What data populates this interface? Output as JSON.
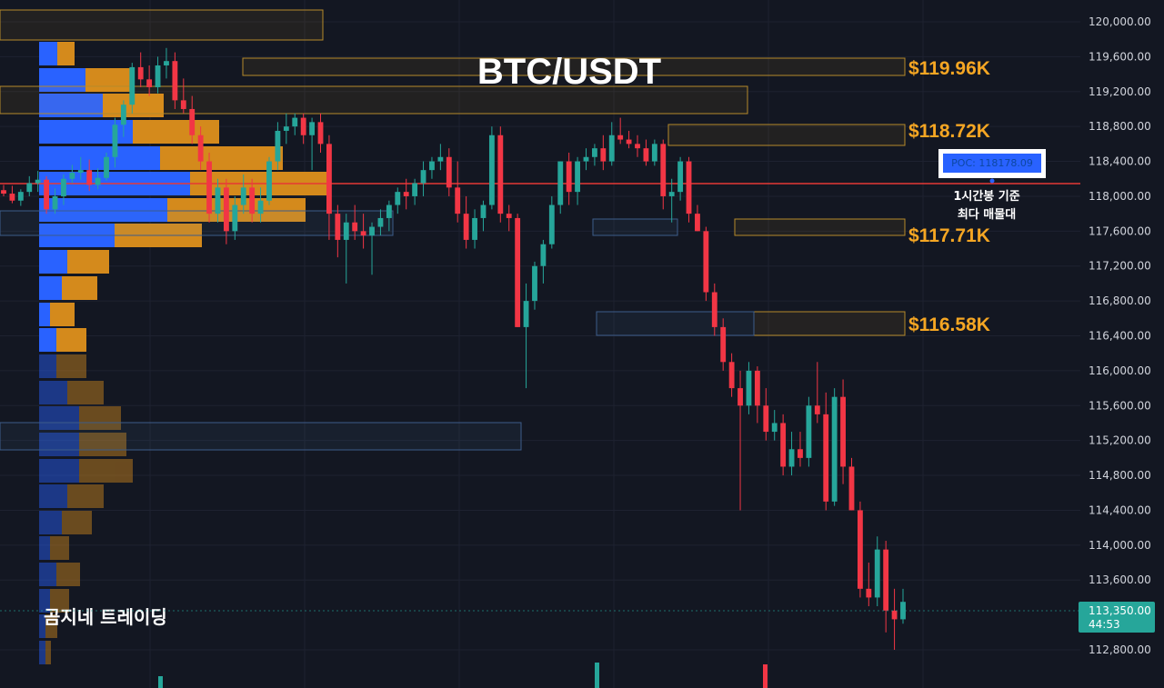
{
  "chart_data": {
    "type": "candlestick",
    "title": "BTC/USDT",
    "brand": "곰지네 트레이딩",
    "y_axis": {
      "min": 112600,
      "max": 120300,
      "ticks": [
        "120,000.00",
        "119,600.00",
        "119,200.00",
        "118,800.00",
        "118,400.00",
        "118,000.00",
        "117,600.00",
        "117,200.00",
        "116,800.00",
        "116,400.00",
        "116,000.00",
        "115,600.00",
        "115,200.00",
        "114,800.00",
        "114,400.00",
        "114,000.00",
        "113,600.00",
        "112,800.00"
      ],
      "tick_values": [
        120000,
        119600,
        119200,
        118800,
        118400,
        118000,
        117600,
        117200,
        116800,
        116400,
        116000,
        115600,
        115200,
        114800,
        114400,
        114000,
        113600,
        112800
      ]
    },
    "level_labels": [
      {
        "text": "$119.96K",
        "price": 119960
      },
      {
        "text": "$118.72K",
        "price": 118720
      },
      {
        "text": "$117.71K",
        "price": 117710
      },
      {
        "text": "$116.58K",
        "price": 116580
      }
    ],
    "poc": {
      "label": "POC: 118178.09",
      "price": 118178.09,
      "note_line1": "1시간봉 기준",
      "note_line2": "최다 매물대"
    },
    "last_price": {
      "price": 113350,
      "label": "113,350.00",
      "countdown": "44:53"
    },
    "colors": {
      "up": "#26a69a",
      "down": "#f23645",
      "poc_line": "#e53935",
      "level_box": "#f5a623",
      "blue_box": "#5b86c2",
      "profile_blue": "#2962ff",
      "profile_orange": "#f5a623",
      "background": "#131722"
    },
    "ohlc": [
      [
        118070,
        118130,
        118000,
        118030
      ],
      [
        118030,
        118120,
        117920,
        117950
      ],
      [
        117950,
        118080,
        117890,
        118050
      ],
      [
        118050,
        118230,
        118000,
        118150
      ],
      [
        118150,
        118290,
        118050,
        118190
      ],
      [
        118190,
        118230,
        117800,
        117850
      ],
      [
        117850,
        118090,
        117800,
        118000
      ],
      [
        118000,
        118250,
        117900,
        118200
      ],
      [
        118200,
        118360,
        118150,
        118270
      ],
      [
        118270,
        118450,
        118190,
        118300
      ],
      [
        118300,
        118420,
        118060,
        118130
      ],
      [
        118130,
        118320,
        118080,
        118210
      ],
      [
        118210,
        118500,
        118180,
        118450
      ],
      [
        118450,
        118900,
        118330,
        118820
      ],
      [
        118820,
        119100,
        118680,
        119050
      ],
      [
        119050,
        119530,
        118950,
        119480
      ],
      [
        119480,
        119650,
        119250,
        119340
      ],
      [
        119340,
        119500,
        119150,
        119250
      ],
      [
        119250,
        119600,
        119180,
        119500
      ],
      [
        119500,
        119700,
        119350,
        119550
      ],
      [
        119550,
        119650,
        119000,
        119100
      ],
      [
        119100,
        119350,
        118950,
        119000
      ],
      [
        119000,
        119150,
        118600,
        118700
      ],
      [
        118700,
        118800,
        118300,
        118400
      ],
      [
        118400,
        118500,
        117700,
        117800
      ],
      [
        117800,
        118200,
        117700,
        118100
      ],
      [
        118100,
        118200,
        117450,
        117600
      ],
      [
        117600,
        118000,
        117500,
        117900
      ],
      [
        117900,
        118250,
        117800,
        118100
      ],
      [
        118100,
        118200,
        117700,
        117800
      ],
      [
        117800,
        118100,
        117700,
        117950
      ],
      [
        117950,
        118450,
        117900,
        118400
      ],
      [
        118400,
        118850,
        118300,
        118750
      ],
      [
        118750,
        118950,
        118600,
        118800
      ],
      [
        118800,
        118950,
        118700,
        118900
      ],
      [
        118900,
        118950,
        118600,
        118700
      ],
      [
        118700,
        118900,
        118300,
        118850
      ],
      [
        118850,
        118950,
        118500,
        118600
      ],
      [
        118600,
        118700,
        117500,
        117800
      ],
      [
        117800,
        117900,
        117300,
        117500
      ],
      [
        117500,
        117800,
        117000,
        117700
      ],
      [
        117700,
        117900,
        117500,
        117600
      ],
      [
        117600,
        117800,
        117400,
        117550
      ],
      [
        117550,
        117700,
        117100,
        117650
      ],
      [
        117650,
        117850,
        117550,
        117750
      ],
      [
        117750,
        117950,
        117600,
        117900
      ],
      [
        117900,
        118100,
        117800,
        118050
      ],
      [
        118050,
        118200,
        117850,
        118000
      ],
      [
        118000,
        118200,
        117900,
        118150
      ],
      [
        118150,
        118400,
        118000,
        118300
      ],
      [
        118300,
        118450,
        118200,
        118400
      ],
      [
        118400,
        118600,
        118300,
        118450
      ],
      [
        118450,
        118550,
        118000,
        118100
      ],
      [
        118100,
        118400,
        117700,
        117800
      ],
      [
        117800,
        118000,
        117400,
        117500
      ],
      [
        117500,
        117850,
        117400,
        117750
      ],
      [
        117750,
        117950,
        117600,
        117900
      ],
      [
        117900,
        118800,
        117850,
        118700
      ],
      [
        118700,
        118800,
        117700,
        117800
      ],
      [
        117800,
        117900,
        117600,
        117750
      ],
      [
        117750,
        117800,
        116500,
        116500
      ],
      [
        116500,
        117000,
        115800,
        116800
      ],
      [
        116800,
        117250,
        116700,
        117200
      ],
      [
        117200,
        117500,
        117000,
        117450
      ],
      [
        117450,
        118000,
        117400,
        117900
      ],
      [
        117900,
        118400,
        117800,
        118400
      ],
      [
        118400,
        118500,
        117900,
        118050
      ],
      [
        118050,
        118450,
        117900,
        118400
      ],
      [
        118400,
        118550,
        118300,
        118450
      ],
      [
        118450,
        118600,
        118350,
        118550
      ],
      [
        118550,
        118700,
        118300,
        118400
      ],
      [
        118400,
        118850,
        118350,
        118700
      ],
      [
        118700,
        118900,
        118600,
        118650
      ],
      [
        118650,
        118750,
        118550,
        118600
      ],
      [
        118600,
        118700,
        118450,
        118550
      ],
      [
        118550,
        118650,
        118350,
        118400
      ],
      [
        118400,
        118650,
        118350,
        118600
      ],
      [
        118600,
        118650,
        117850,
        118000
      ],
      [
        118000,
        118200,
        117700,
        118050
      ],
      [
        118050,
        118450,
        117950,
        118400
      ],
      [
        118400,
        118450,
        117700,
        117800
      ],
      [
        117800,
        117900,
        117600,
        117600
      ],
      [
        117600,
        117650,
        116800,
        116900
      ],
      [
        116900,
        117000,
        116400,
        116500
      ],
      [
        116500,
        116600,
        116000,
        116100
      ],
      [
        116100,
        116200,
        115700,
        115800
      ],
      [
        115800,
        116000,
        114400,
        115600
      ],
      [
        115600,
        116100,
        115500,
        116000
      ],
      [
        116000,
        116050,
        115400,
        115600
      ],
      [
        115600,
        115800,
        115200,
        115300
      ],
      [
        115300,
        115550,
        115200,
        115400
      ],
      [
        115400,
        115500,
        114800,
        114900
      ],
      [
        114900,
        115300,
        114800,
        115100
      ],
      [
        115100,
        115300,
        114900,
        115000
      ],
      [
        115000,
        115700,
        114900,
        115600
      ],
      [
        115600,
        116100,
        115400,
        115500
      ],
      [
        115500,
        115750,
        114400,
        114500
      ],
      [
        114500,
        115800,
        114450,
        115700
      ],
      [
        115700,
        115900,
        114700,
        114900
      ],
      [
        114900,
        115000,
        114400,
        114400
      ],
      [
        114400,
        114500,
        113400,
        113500
      ],
      [
        113500,
        113800,
        113300,
        113400
      ],
      [
        113400,
        114100,
        113300,
        113950
      ],
      [
        113950,
        114050,
        113000,
        113250
      ],
      [
        113250,
        113500,
        112800,
        113150
      ],
      [
        113150,
        113500,
        113100,
        113350
      ]
    ]
  }
}
